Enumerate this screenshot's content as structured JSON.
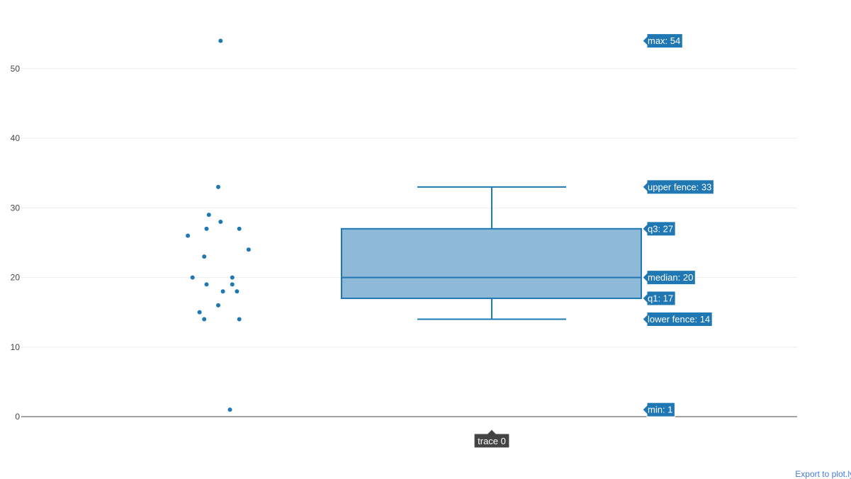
{
  "chart_data": {
    "type": "box",
    "series": [
      {
        "name": "trace 0",
        "points": [
          {
            "jitter": 0.05,
            "y": 54
          },
          {
            "jitter": 0.25,
            "y": 1
          },
          {
            "jitter": 0.0,
            "y": 33
          },
          {
            "jitter": -0.2,
            "y": 29
          },
          {
            "jitter": -0.25,
            "y": 27
          },
          {
            "jitter": 0.05,
            "y": 28
          },
          {
            "jitter": 0.45,
            "y": 27
          },
          {
            "jitter": -0.65,
            "y": 26
          },
          {
            "jitter": 0.65,
            "y": 24
          },
          {
            "jitter": -0.3,
            "y": 23
          },
          {
            "jitter": -0.55,
            "y": 20
          },
          {
            "jitter": 0.3,
            "y": 20
          },
          {
            "jitter": -0.25,
            "y": 19
          },
          {
            "jitter": 0.3,
            "y": 19
          },
          {
            "jitter": 0.1,
            "y": 18
          },
          {
            "jitter": 0.4,
            "y": 18
          },
          {
            "jitter": 0.0,
            "y": 16
          },
          {
            "jitter": -0.4,
            "y": 15
          },
          {
            "jitter": -0.3,
            "y": 14
          },
          {
            "jitter": 0.45,
            "y": 14
          }
        ],
        "min": 1,
        "lower_fence": 14,
        "q1": 17,
        "median": 20,
        "q3": 27,
        "upper_fence": 33,
        "max": 54
      }
    ],
    "ylim": [
      0,
      56
    ],
    "yticks": [
      0,
      10,
      20,
      30,
      40,
      50
    ],
    "grid": true,
    "color": "#1f77b4",
    "box_fill": "#8fb9d9",
    "hover_labels": [
      {
        "text": "max: 54",
        "value": 54
      },
      {
        "text": "upper fence: 33",
        "value": 33
      },
      {
        "text": "q3: 27",
        "value": 27
      },
      {
        "text": "median: 20",
        "value": 20
      },
      {
        "text": "q1: 17",
        "value": 17
      },
      {
        "text": "lower fence: 14",
        "value": 14
      },
      {
        "text": "min: 1",
        "value": 1
      }
    ],
    "x_hover_label": "trace 0"
  },
  "footer": {
    "link_text": "Export to plot.ly »"
  }
}
